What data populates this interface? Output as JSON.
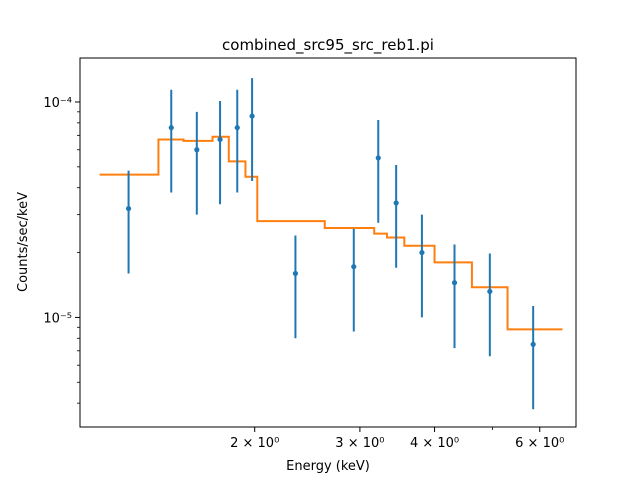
{
  "chart_data": {
    "type": "scatter",
    "title": "combined_src95_src_reb1.pi",
    "xlabel": "Energy (keV)",
    "ylabel": "Counts/sec/keV",
    "xscale": "log",
    "yscale": "log",
    "xlim": [
      1.02,
      6.9
    ],
    "ylim": [
      3.1e-06,
      0.00016
    ],
    "grid": false,
    "x_ticks": [
      {
        "value": 2,
        "label": "2 × 10⁰"
      },
      {
        "value": 3,
        "label": "3 × 10⁰"
      },
      {
        "value": 4,
        "label": "4 × 10⁰"
      },
      {
        "value": 6,
        "label": "6 × 10⁰"
      }
    ],
    "y_ticks": [
      {
        "value": 1e-05,
        "label": "10⁻⁵"
      },
      {
        "value": 0.0001,
        "label": "10⁻⁴"
      }
    ],
    "series": [
      {
        "kind": "errorbar",
        "color": "#1f77b4",
        "points": [
          {
            "x": 1.23,
            "y": 3.2e-05,
            "ylo": 1.6e-05,
            "yhi": 4.8e-05
          },
          {
            "x": 1.45,
            "y": 7.6e-05,
            "ylo": 3.8e-05,
            "yhi": 0.000114
          },
          {
            "x": 1.6,
            "y": 6e-05,
            "ylo": 3e-05,
            "yhi": 9e-05
          },
          {
            "x": 1.75,
            "y": 6.7e-05,
            "ylo": 3.35e-05,
            "yhi": 0.000101
          },
          {
            "x": 1.87,
            "y": 7.6e-05,
            "ylo": 3.8e-05,
            "yhi": 0.000114
          },
          {
            "x": 1.98,
            "y": 8.6e-05,
            "ylo": 4.3e-05,
            "yhi": 0.000129
          },
          {
            "x": 2.34,
            "y": 1.6e-05,
            "ylo": 8e-06,
            "yhi": 2.4e-05
          },
          {
            "x": 2.93,
            "y": 1.72e-05,
            "ylo": 8.6e-06,
            "yhi": 2.58e-05
          },
          {
            "x": 3.22,
            "y": 5.5e-05,
            "ylo": 2.75e-05,
            "yhi": 8.25e-05
          },
          {
            "x": 3.45,
            "y": 3.4e-05,
            "ylo": 1.7e-05,
            "yhi": 5.1e-05
          },
          {
            "x": 3.81,
            "y": 2e-05,
            "ylo": 1e-05,
            "yhi": 3e-05
          },
          {
            "x": 4.32,
            "y": 1.45e-05,
            "ylo": 7.2e-06,
            "yhi": 2.18e-05
          },
          {
            "x": 4.95,
            "y": 1.32e-05,
            "ylo": 6.6e-06,
            "yhi": 1.98e-05
          },
          {
            "x": 5.85,
            "y": 7.5e-06,
            "ylo": 3.75e-06,
            "yhi": 1.13e-05
          }
        ]
      },
      {
        "kind": "step-model",
        "color": "#ff7f0e",
        "steps": [
          {
            "x0": 1.1,
            "x1": 1.38,
            "y": 4.6e-05
          },
          {
            "x0": 1.38,
            "x1": 1.52,
            "y": 6.7e-05
          },
          {
            "x0": 1.52,
            "x1": 1.7,
            "y": 6.6e-05
          },
          {
            "x0": 1.7,
            "x1": 1.81,
            "y": 6.9e-05
          },
          {
            "x0": 1.81,
            "x1": 1.93,
            "y": 5.3e-05
          },
          {
            "x0": 1.93,
            "x1": 2.02,
            "y": 4.5e-05
          },
          {
            "x0": 2.02,
            "x1": 2.62,
            "y": 2.8e-05
          },
          {
            "x0": 2.62,
            "x1": 3.17,
            "y": 2.6e-05
          },
          {
            "x0": 3.17,
            "x1": 3.33,
            "y": 2.45e-05
          },
          {
            "x0": 3.33,
            "x1": 3.56,
            "y": 2.35e-05
          },
          {
            "x0": 3.56,
            "x1": 4.0,
            "y": 2.15e-05
          },
          {
            "x0": 4.0,
            "x1": 4.62,
            "y": 1.8e-05
          },
          {
            "x0": 4.62,
            "x1": 5.3,
            "y": 1.38e-05
          },
          {
            "x0": 5.3,
            "x1": 6.55,
            "y": 8.8e-06
          }
        ]
      }
    ]
  }
}
